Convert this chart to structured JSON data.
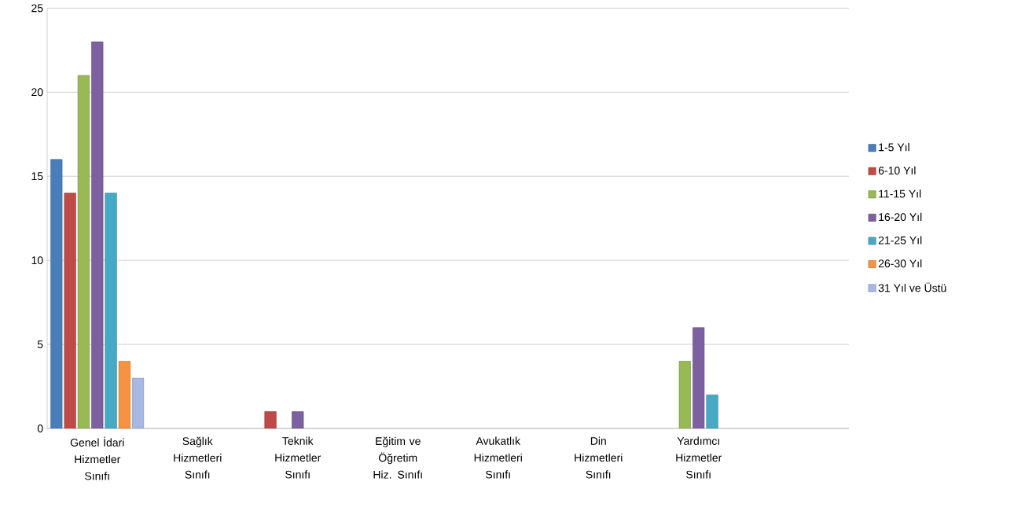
{
  "chart_data": {
    "type": "bar",
    "categories": [
      "Genel İdari Hizmetler Sınıfı",
      "Sağlık Hizmetleri Sınıfı",
      "Teknik Hizmetler Sınıfı",
      "Eğitim ve Öğretim Hiz. Sınıfı",
      "Avukatlık Hizmetleri Sınıfı",
      "Din Hizmetleri Sınıfı",
      "Yardımcı Hizmetler Sınıfı",
      null
    ],
    "series": [
      {
        "name": "1-5 Yıl",
        "color": "#4a7ebb",
        "values": [
          16,
          null,
          null,
          null,
          null,
          null,
          null,
          null
        ]
      },
      {
        "name": "6-10 Yıl",
        "color": "#be4b48",
        "values": [
          14,
          null,
          1,
          null,
          null,
          null,
          null,
          null
        ]
      },
      {
        "name": "11-15 Yıl",
        "color": "#98b954",
        "values": [
          21,
          null,
          null,
          null,
          null,
          null,
          4,
          null
        ]
      },
      {
        "name": "16-20 Yıl",
        "color": "#7d60a0",
        "values": [
          23,
          null,
          1,
          null,
          null,
          null,
          6,
          null
        ]
      },
      {
        "name": "21-25 Yıl",
        "color": "#46aac5",
        "values": [
          14,
          null,
          null,
          null,
          null,
          null,
          2,
          null
        ]
      },
      {
        "name": "26-30 Yıl",
        "color": "#f69240",
        "values": [
          4,
          null,
          null,
          null,
          null,
          null,
          null,
          null
        ]
      },
      {
        "name": "31 Yıl ve Üstü",
        "color": "#a7b9e3",
        "values": [
          3,
          null,
          null,
          null,
          null,
          null,
          null,
          null
        ]
      }
    ],
    "ylim": [
      0,
      25
    ],
    "yticks": [
      0,
      5,
      10,
      15,
      20,
      25
    ],
    "grid": "y",
    "legend": "right"
  }
}
